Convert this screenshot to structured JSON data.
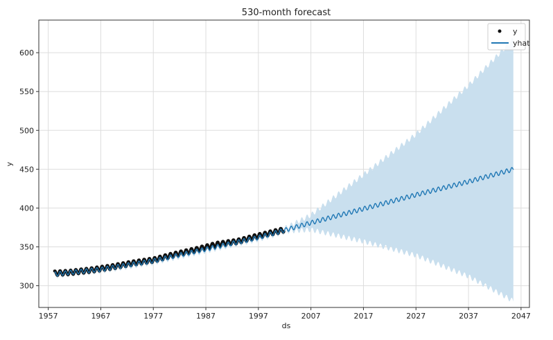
{
  "chart_data": {
    "type": "line",
    "title": "530-month forecast",
    "xlabel": "ds",
    "ylabel": "y",
    "xlim": [
      1955.2,
      2048.6
    ],
    "ylim": [
      272,
      642
    ],
    "x_ticks": [
      1957,
      1967,
      1977,
      1987,
      1997,
      2007,
      2017,
      2027,
      2037,
      2047
    ],
    "y_ticks": [
      300,
      350,
      400,
      450,
      500,
      550,
      600
    ],
    "grid": true,
    "legend_position": "top-right",
    "colors": {
      "observed": "#111111",
      "forecast": "#1f77b4",
      "interval": "#c9dfee"
    },
    "series": [
      {
        "name": "y",
        "kind": "scatter",
        "x": [
          1958.2,
          1961,
          1965,
          1969,
          1973,
          1977,
          1981,
          1985,
          1989,
          1993,
          1997,
          2001.9
        ],
        "values": [
          316,
          317,
          320,
          324,
          329,
          333,
          340,
          346,
          353,
          357,
          364,
          372
        ]
      },
      {
        "name": "yhat",
        "kind": "line",
        "x": [
          1958.2,
          1967,
          1977,
          1987,
          1997,
          2007,
          2017,
          2027,
          2037,
          2045.6
        ],
        "values": [
          315,
          321,
          332,
          347,
          362,
          381,
          399,
          417,
          434,
          450
        ]
      },
      {
        "name": "yhat interval",
        "kind": "band",
        "x": [
          2002,
          2007,
          2017,
          2027,
          2037,
          2045.6
        ],
        "lower": [
          370,
          372,
          357,
          339,
          312,
          280
        ],
        "upper": [
          374,
          391,
          443,
          495,
          558,
          618
        ]
      }
    ]
  }
}
